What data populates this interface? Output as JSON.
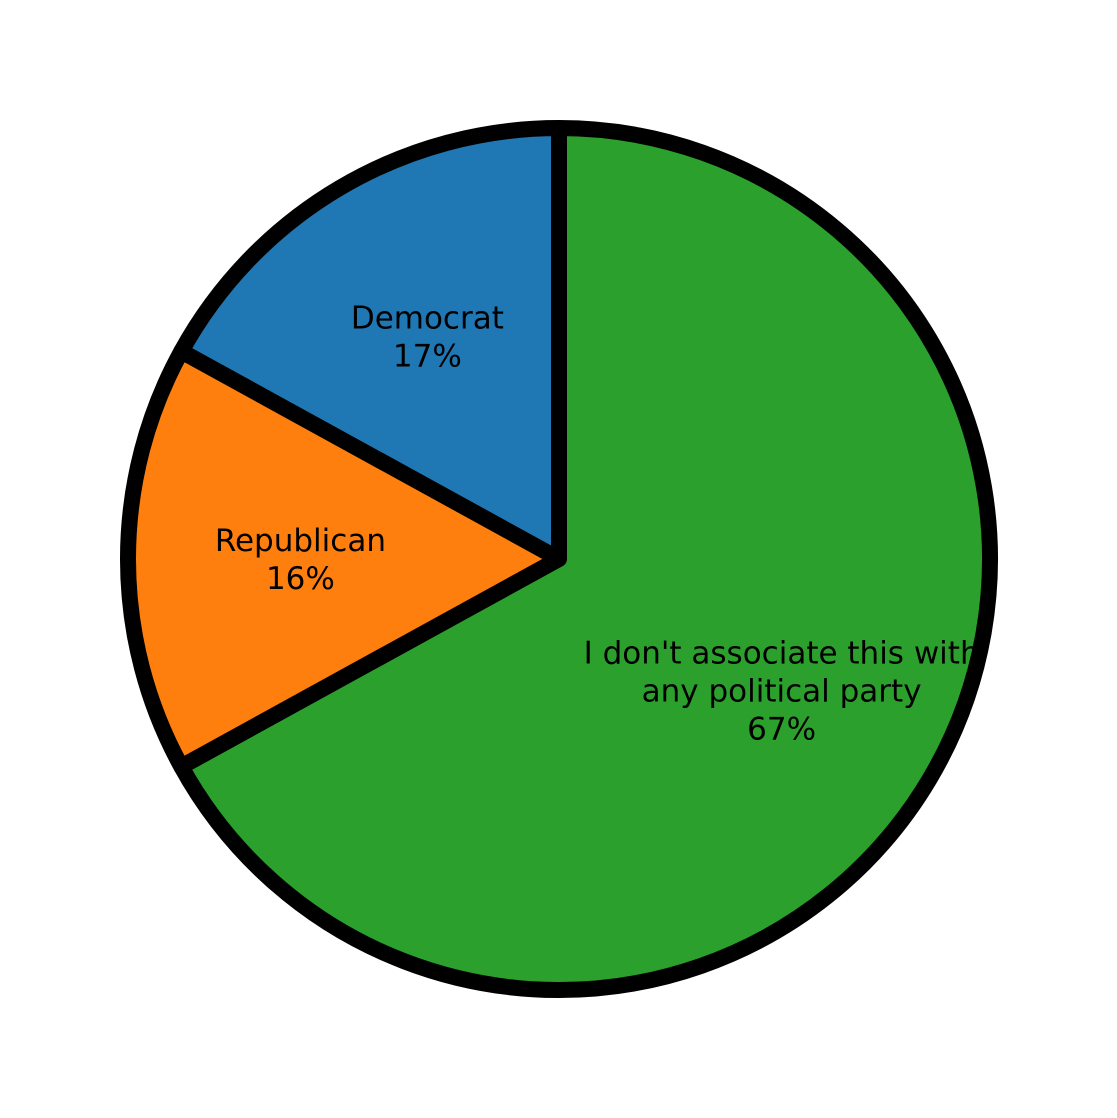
{
  "chart_data": {
    "type": "pie",
    "title": "",
    "start_angle_deg": 90,
    "direction": "counterclockwise",
    "slices": [
      {
        "lines": [
          "Democrat",
          "17%"
        ],
        "value": 17,
        "color": "#1f77b4"
      },
      {
        "lines": [
          "Republican",
          "16%"
        ],
        "value": 16,
        "color": "#ff7f0e"
      },
      {
        "lines": [
          "I don't associate this with",
          "any political party",
          "67%"
        ],
        "value": 67,
        "color": "#2ca02c"
      }
    ],
    "edge_color": "#000000"
  }
}
